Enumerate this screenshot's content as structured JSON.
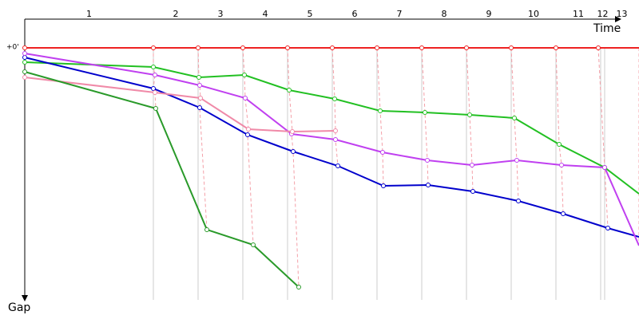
{
  "chart_data": {
    "type": "gap",
    "x_label": "Time",
    "y_label": "Gap",
    "zero_label": "+0'",
    "xlim": [
      0,
      769
    ],
    "ylim": [
      0,
      316
    ],
    "laps": [
      "1",
      "2",
      "3",
      "4",
      "5",
      "6",
      "7",
      "8",
      "9",
      "10",
      "11",
      "12",
      "13"
    ],
    "lap_ends": [
      161,
      217,
      273,
      329,
      385,
      441,
      497,
      553,
      609,
      665,
      721,
      726,
      769
    ],
    "series": [
      {
        "color": "#ee2222",
        "x": [
          0,
          161,
          217,
          273,
          329,
          385,
          441,
          497,
          553,
          609,
          665,
          718,
          769
        ],
        "values": [
          0,
          0,
          0,
          0,
          0,
          0,
          0,
          0,
          0,
          0,
          0,
          0,
          0
        ]
      },
      {
        "color": "#22c022",
        "x": [
          0,
          161,
          218,
          275,
          331,
          388,
          445,
          501,
          557,
          613,
          669,
          726,
          769
        ],
        "values": [
          18,
          24,
          37,
          34,
          53,
          64,
          79,
          81,
          84,
          88,
          121,
          150,
          183
        ]
      },
      {
        "color": "#0000cc",
        "x": [
          0,
          161,
          219,
          279,
          336,
          392,
          449,
          505,
          561,
          618,
          674,
          730,
          769
        ],
        "values": [
          12,
          51,
          75,
          109,
          130,
          148,
          173,
          172,
          180,
          192,
          208,
          226,
          237
        ]
      },
      {
        "color": "#c040f0",
        "x": [
          0,
          163,
          219,
          276,
          334,
          389,
          448,
          504,
          560,
          616,
          672,
          726,
          769
        ],
        "values": [
          7,
          34,
          47,
          63,
          108,
          115,
          131,
          141,
          147,
          141,
          147,
          150,
          248
        ]
      },
      {
        "color": "#f08aa8",
        "x": [
          0,
          163,
          220,
          280,
          335,
          389
        ],
        "values": [
          37,
          56,
          63,
          102,
          105,
          104
        ]
      },
      {
        "color": "#2a9a2a",
        "x": [
          0,
          164,
          228,
          286,
          343
        ],
        "values": [
          30,
          76,
          228,
          247,
          300
        ]
      }
    ]
  }
}
